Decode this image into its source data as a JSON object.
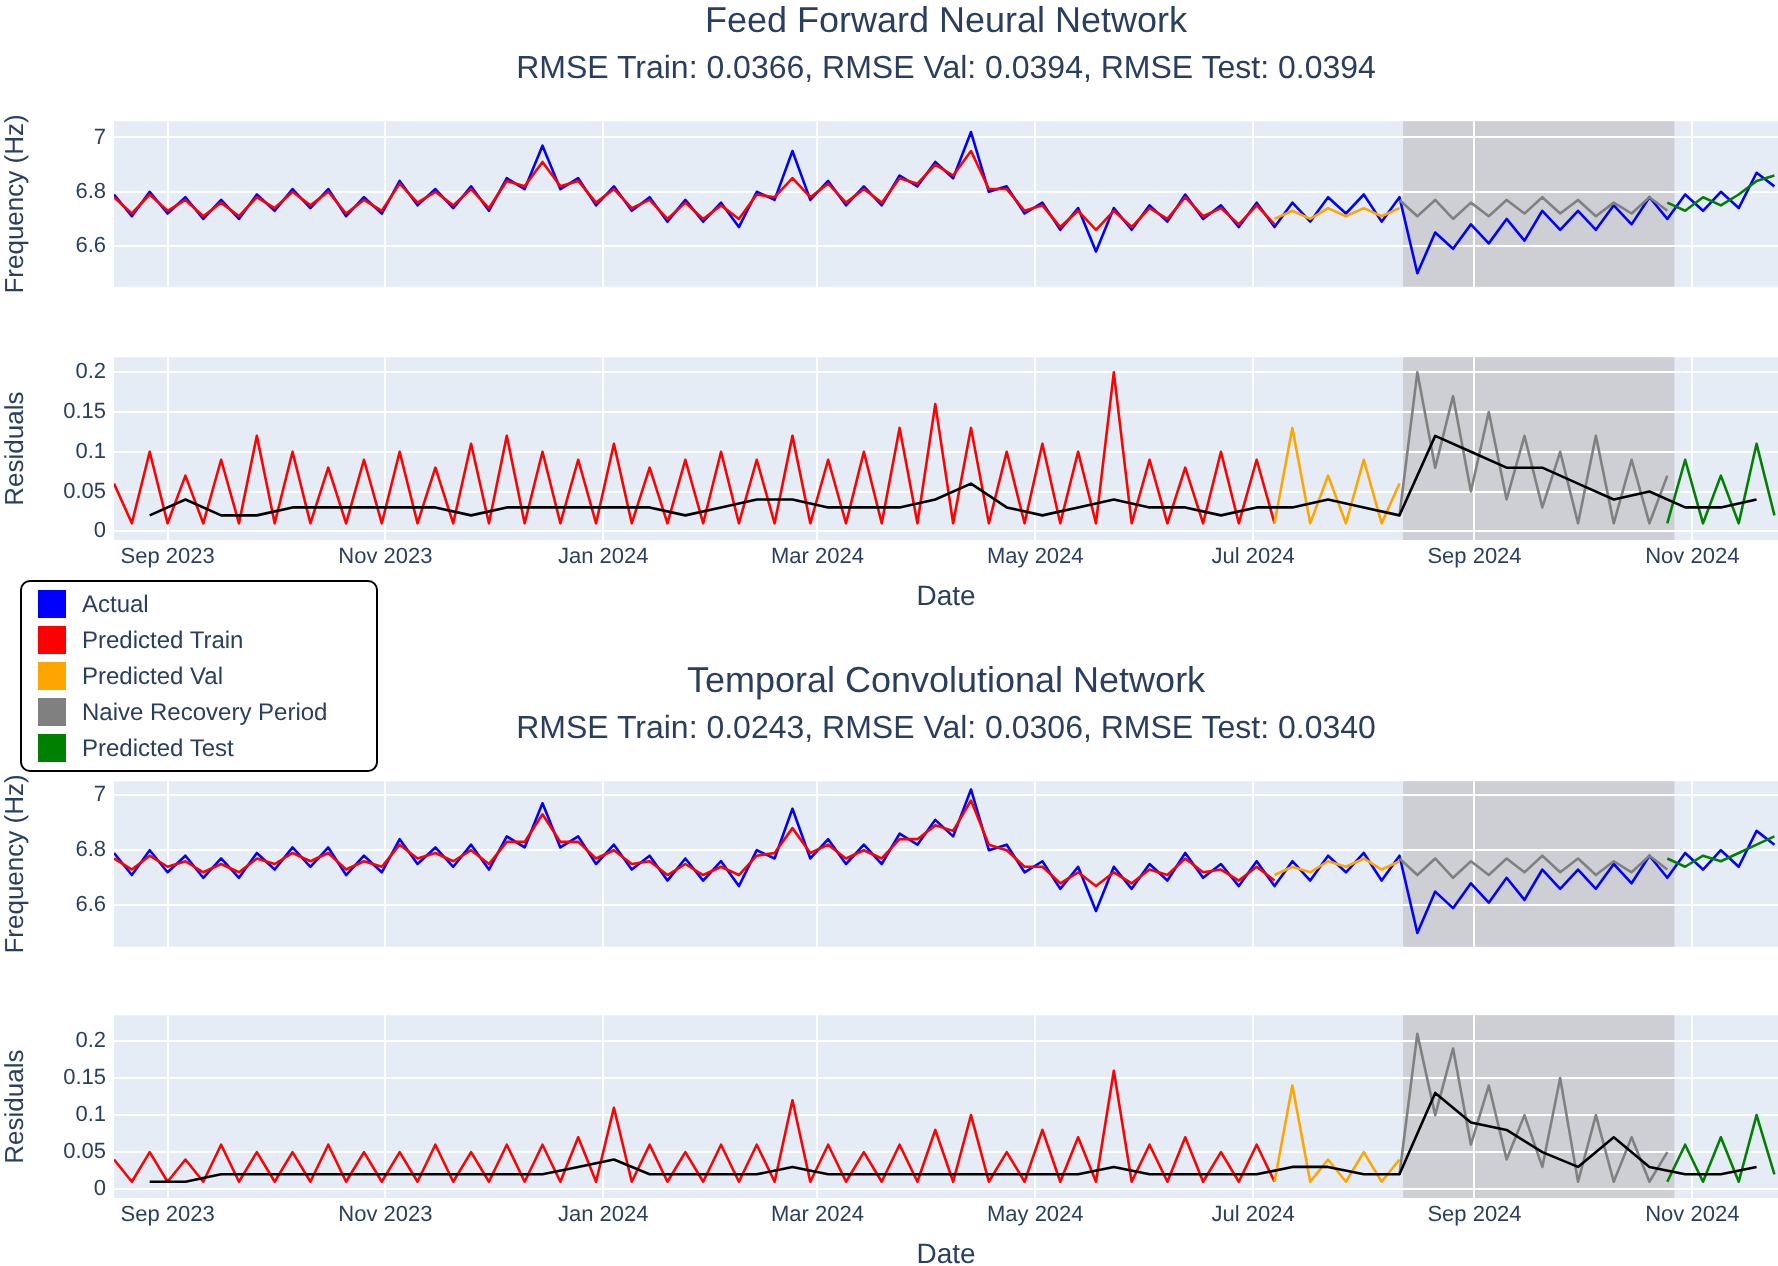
{
  "chart_data": [
    {
      "type": "line",
      "title": "Feed Forward Neural Network",
      "subtitle": "RMSE Train: 0.0366, RMSE Val: 0.0394, RMSE Test: 0.0394",
      "ylabel": "Frequency (Hz)",
      "legend": "left",
      "grid": true,
      "marker": "none",
      "tick_labels": "y",
      "xlim": [
        "2023-08-17",
        "2024-11-25"
      ],
      "xticks": [
        {
          "value": "2023-09-01",
          "label": null
        },
        {
          "value": "2023-11-01",
          "label": null
        },
        {
          "value": "2024-01-01",
          "label": null
        },
        {
          "value": "2024-03-01",
          "label": null
        },
        {
          "value": "2024-05-01",
          "label": null
        },
        {
          "value": "2024-07-01",
          "label": null
        },
        {
          "value": "2024-09-01",
          "label": null
        },
        {
          "value": "2024-11-01",
          "label": null
        }
      ],
      "ylim": [
        6.45,
        7.06
      ],
      "yticks": [
        6.6,
        6.8,
        7
      ],
      "bands": [
        {
          "axis": "x",
          "from": "2024-08-12",
          "to": "2024-10-27",
          "color": "#cdcfd4"
        }
      ],
      "series": [
        {
          "name": "Actual",
          "color": "#0000ff",
          "x": [
            "2023-08-17",
            "2023-08-22",
            "2023-08-27",
            "2023-09-01",
            "2023-09-06",
            "2023-09-11",
            "2023-09-16",
            "2023-09-21",
            "2023-09-26",
            "2023-10-01",
            "2023-10-06",
            "2023-10-11",
            "2023-10-16",
            "2023-10-21",
            "2023-10-26",
            "2023-10-31",
            "2023-11-05",
            "2023-11-10",
            "2023-11-15",
            "2023-11-20",
            "2023-11-25",
            "2023-11-30",
            "2023-12-05",
            "2023-12-10",
            "2023-12-15",
            "2023-12-20",
            "2023-12-25",
            "2023-12-30",
            "2024-01-04",
            "2024-01-09",
            "2024-01-14",
            "2024-01-19",
            "2024-01-24",
            "2024-01-29",
            "2024-02-03",
            "2024-02-08",
            "2024-02-13",
            "2024-02-18",
            "2024-02-23",
            "2024-02-28",
            "2024-03-04",
            "2024-03-09",
            "2024-03-14",
            "2024-03-19",
            "2024-03-24",
            "2024-03-29",
            "2024-04-03",
            "2024-04-08",
            "2024-04-13",
            "2024-04-18",
            "2024-04-23",
            "2024-04-28",
            "2024-05-03",
            "2024-05-08",
            "2024-05-13",
            "2024-05-18",
            "2024-05-23",
            "2024-05-28",
            "2024-06-02",
            "2024-06-07",
            "2024-06-12",
            "2024-06-17",
            "2024-06-22",
            "2024-06-27",
            "2024-07-02",
            "2024-07-07",
            "2024-07-12",
            "2024-07-17",
            "2024-07-22",
            "2024-07-27",
            "2024-08-01",
            "2024-08-06",
            "2024-08-11",
            "2024-08-16",
            "2024-08-21",
            "2024-08-26",
            "2024-08-31",
            "2024-09-05",
            "2024-09-10",
            "2024-09-15",
            "2024-09-20",
            "2024-09-25",
            "2024-09-30",
            "2024-10-05",
            "2024-10-10",
            "2024-10-15",
            "2024-10-20",
            "2024-10-25",
            "2024-10-30",
            "2024-11-04",
            "2024-11-09",
            "2024-11-14",
            "2024-11-19",
            "2024-11-24"
          ],
          "values": [
            6.79,
            6.71,
            6.8,
            6.72,
            6.78,
            6.7,
            6.77,
            6.7,
            6.79,
            6.73,
            6.81,
            6.74,
            6.81,
            6.71,
            6.78,
            6.72,
            6.84,
            6.75,
            6.81,
            6.74,
            6.82,
            6.73,
            6.85,
            6.81,
            6.97,
            6.81,
            6.85,
            6.75,
            6.82,
            6.73,
            6.78,
            6.69,
            6.77,
            6.69,
            6.76,
            6.67,
            6.8,
            6.77,
            6.95,
            6.77,
            6.84,
            6.75,
            6.82,
            6.75,
            6.86,
            6.82,
            6.91,
            6.85,
            7.02,
            6.8,
            6.82,
            6.72,
            6.76,
            6.66,
            6.74,
            6.58,
            6.74,
            6.66,
            6.75,
            6.69,
            6.79,
            6.7,
            6.75,
            6.67,
            6.76,
            6.67,
            6.76,
            6.69,
            6.78,
            6.72,
            6.79,
            6.69,
            6.78,
            6.5,
            6.65,
            6.59,
            6.68,
            6.61,
            6.7,
            6.62,
            6.73,
            6.66,
            6.73,
            6.66,
            6.75,
            6.68,
            6.78,
            6.7,
            6.79,
            6.73,
            6.8,
            6.74,
            6.87,
            6.82
          ]
        },
        {
          "name": "Predicted Train",
          "color": "#ff0000",
          "x": [
            "2023-08-17",
            "2023-08-22",
            "2023-08-27",
            "2023-09-01",
            "2023-09-06",
            "2023-09-11",
            "2023-09-16",
            "2023-09-21",
            "2023-09-26",
            "2023-10-01",
            "2023-10-06",
            "2023-10-11",
            "2023-10-16",
            "2023-10-21",
            "2023-10-26",
            "2023-10-31",
            "2023-11-05",
            "2023-11-10",
            "2023-11-15",
            "2023-11-20",
            "2023-11-25",
            "2023-11-30",
            "2023-12-05",
            "2023-12-10",
            "2023-12-15",
            "2023-12-20",
            "2023-12-25",
            "2023-12-30",
            "2024-01-04",
            "2024-01-09",
            "2024-01-14",
            "2024-01-19",
            "2024-01-24",
            "2024-01-29",
            "2024-02-03",
            "2024-02-08",
            "2024-02-13",
            "2024-02-18",
            "2024-02-23",
            "2024-02-28",
            "2024-03-04",
            "2024-03-09",
            "2024-03-14",
            "2024-03-19",
            "2024-03-24",
            "2024-03-29",
            "2024-04-03",
            "2024-04-08",
            "2024-04-13",
            "2024-04-18",
            "2024-04-23",
            "2024-04-28",
            "2024-05-03",
            "2024-05-08",
            "2024-05-13",
            "2024-05-18",
            "2024-05-23",
            "2024-05-28",
            "2024-06-02",
            "2024-06-07",
            "2024-06-12",
            "2024-06-17",
            "2024-06-22",
            "2024-06-27",
            "2024-07-02",
            "2024-07-07"
          ],
          "values": [
            6.78,
            6.72,
            6.79,
            6.73,
            6.77,
            6.71,
            6.76,
            6.71,
            6.78,
            6.74,
            6.8,
            6.75,
            6.8,
            6.72,
            6.77,
            6.73,
            6.83,
            6.76,
            6.8,
            6.75,
            6.81,
            6.74,
            6.84,
            6.82,
            6.91,
            6.82,
            6.84,
            6.76,
            6.81,
            6.74,
            6.77,
            6.7,
            6.76,
            6.7,
            6.75,
            6.7,
            6.79,
            6.78,
            6.85,
            6.78,
            6.83,
            6.76,
            6.81,
            6.76,
            6.85,
            6.83,
            6.9,
            6.86,
            6.95,
            6.81,
            6.81,
            6.73,
            6.75,
            6.67,
            6.73,
            6.66,
            6.73,
            6.67,
            6.74,
            6.7,
            6.78,
            6.71,
            6.74,
            6.68,
            6.75,
            6.68
          ]
        },
        {
          "name": "Predicted Val",
          "color": "#ffa500",
          "x": [
            "2024-07-07",
            "2024-07-12",
            "2024-07-17",
            "2024-07-22",
            "2024-07-27",
            "2024-08-01",
            "2024-08-06",
            "2024-08-11"
          ],
          "values": [
            6.7,
            6.73,
            6.7,
            6.74,
            6.71,
            6.74,
            6.71,
            6.74
          ]
        },
        {
          "name": "Naive Recovery Period",
          "color": "#808080",
          "x": [
            "2024-08-11",
            "2024-08-16",
            "2024-08-21",
            "2024-08-26",
            "2024-08-31",
            "2024-09-05",
            "2024-09-10",
            "2024-09-15",
            "2024-09-20",
            "2024-09-25",
            "2024-09-30",
            "2024-10-05",
            "2024-10-10",
            "2024-10-15",
            "2024-10-20",
            "2024-10-25"
          ],
          "values": [
            6.77,
            6.71,
            6.77,
            6.7,
            6.76,
            6.71,
            6.77,
            6.72,
            6.78,
            6.72,
            6.77,
            6.71,
            6.76,
            6.72,
            6.78,
            6.73
          ]
        },
        {
          "name": "Predicted Test",
          "color": "#008000",
          "x": [
            "2024-10-25",
            "2024-10-30",
            "2024-11-04",
            "2024-11-09",
            "2024-11-14",
            "2024-11-19",
            "2024-11-24"
          ],
          "values": [
            6.76,
            6.73,
            6.78,
            6.75,
            6.79,
            6.84,
            6.86
          ]
        }
      ]
    },
    {
      "type": "line",
      "xlabel": "Date",
      "ylabel": "Residuals",
      "grid": true,
      "marker": "none",
      "xlim": [
        "2023-08-17",
        "2024-11-25"
      ],
      "xticks": [
        {
          "value": "2023-09-01",
          "label": "Sep 2023"
        },
        {
          "value": "2023-11-01",
          "label": "Nov 2023"
        },
        {
          "value": "2024-01-01",
          "label": "Jan 2024"
        },
        {
          "value": "2024-03-01",
          "label": "Mar 2024"
        },
        {
          "value": "2024-05-01",
          "label": "May 2024"
        },
        {
          "value": "2024-07-01",
          "label": "Jul 2024"
        },
        {
          "value": "2024-09-01",
          "label": "Sep 2024"
        },
        {
          "value": "2024-11-01",
          "label": "Nov 2024"
        }
      ],
      "ylim": [
        -0.011,
        0.219
      ],
      "yticks": [
        0,
        0.05,
        0.1,
        0.15,
        0.2
      ],
      "bands": [
        {
          "axis": "x",
          "from": "2024-08-12",
          "to": "2024-10-27",
          "color": "#cdcfd4"
        }
      ],
      "series": [
        {
          "color": "#ff0000",
          "x": [
            "2023-08-17",
            "2023-08-22",
            "2023-08-27",
            "2023-09-01",
            "2023-09-06",
            "2023-09-11",
            "2023-09-16",
            "2023-09-21",
            "2023-09-26",
            "2023-10-01",
            "2023-10-06",
            "2023-10-11",
            "2023-10-16",
            "2023-10-21",
            "2023-10-26",
            "2023-10-31",
            "2023-11-05",
            "2023-11-10",
            "2023-11-15",
            "2023-11-20",
            "2023-11-25",
            "2023-11-30",
            "2023-12-05",
            "2023-12-10",
            "2023-12-15",
            "2023-12-20",
            "2023-12-25",
            "2023-12-30",
            "2024-01-04",
            "2024-01-09",
            "2024-01-14",
            "2024-01-19",
            "2024-01-24",
            "2024-01-29",
            "2024-02-03",
            "2024-02-08",
            "2024-02-13",
            "2024-02-18",
            "2024-02-23",
            "2024-02-28",
            "2024-03-04",
            "2024-03-09",
            "2024-03-14",
            "2024-03-19",
            "2024-03-24",
            "2024-03-29",
            "2024-04-03",
            "2024-04-08",
            "2024-04-13",
            "2024-04-18",
            "2024-04-23",
            "2024-04-28",
            "2024-05-03",
            "2024-05-08",
            "2024-05-13",
            "2024-05-18",
            "2024-05-23",
            "2024-05-28",
            "2024-06-02",
            "2024-06-07",
            "2024-06-12",
            "2024-06-17",
            "2024-06-22",
            "2024-06-27",
            "2024-07-02",
            "2024-07-07"
          ],
          "values": [
            0.06,
            0.01,
            0.1,
            0.01,
            0.07,
            0.01,
            0.09,
            0.01,
            0.12,
            0.01,
            0.1,
            0.01,
            0.08,
            0.01,
            0.09,
            0.01,
            0.1,
            0.01,
            0.08,
            0.01,
            0.11,
            0.01,
            0.12,
            0.01,
            0.1,
            0.01,
            0.09,
            0.01,
            0.11,
            0.01,
            0.08,
            0.01,
            0.09,
            0.01,
            0.1,
            0.01,
            0.09,
            0.01,
            0.12,
            0.01,
            0.09,
            0.01,
            0.1,
            0.01,
            0.13,
            0.01,
            0.16,
            0.01,
            0.13,
            0.01,
            0.1,
            0.01,
            0.11,
            0.01,
            0.1,
            0.01,
            0.2,
            0.01,
            0.09,
            0.01,
            0.08,
            0.01,
            0.1,
            0.01,
            0.09,
            0.01
          ]
        },
        {
          "color": "#ffa500",
          "x": [
            "2024-07-07",
            "2024-07-12",
            "2024-07-17",
            "2024-07-22",
            "2024-07-27",
            "2024-08-01",
            "2024-08-06",
            "2024-08-11"
          ],
          "values": [
            0.01,
            0.13,
            0.01,
            0.07,
            0.01,
            0.09,
            0.01,
            0.06
          ]
        },
        {
          "color": "#808080",
          "x": [
            "2024-08-11",
            "2024-08-16",
            "2024-08-21",
            "2024-08-26",
            "2024-08-31",
            "2024-09-05",
            "2024-09-10",
            "2024-09-15",
            "2024-09-20",
            "2024-09-25",
            "2024-09-30",
            "2024-10-05",
            "2024-10-10",
            "2024-10-15",
            "2024-10-20",
            "2024-10-25"
          ],
          "values": [
            0.02,
            0.2,
            0.08,
            0.17,
            0.05,
            0.15,
            0.04,
            0.12,
            0.03,
            0.1,
            0.01,
            0.12,
            0.01,
            0.09,
            0.01,
            0.07
          ]
        },
        {
          "color": "#008000",
          "x": [
            "2024-10-25",
            "2024-10-30",
            "2024-11-04",
            "2024-11-09",
            "2024-11-14",
            "2024-11-19",
            "2024-11-24"
          ],
          "values": [
            0.01,
            0.09,
            0.01,
            0.07,
            0.01,
            0.11,
            0.02
          ]
        },
        {
          "color": "#000000",
          "x": [
            "2023-08-27",
            "2023-09-06",
            "2023-09-16",
            "2023-09-26",
            "2023-10-06",
            "2023-10-16",
            "2023-10-26",
            "2023-11-05",
            "2023-11-15",
            "2023-11-25",
            "2023-12-05",
            "2023-12-15",
            "2023-12-25",
            "2024-01-04",
            "2024-01-14",
            "2024-01-24",
            "2024-02-03",
            "2024-02-13",
            "2024-02-23",
            "2024-03-04",
            "2024-03-14",
            "2024-03-24",
            "2024-04-03",
            "2024-04-13",
            "2024-04-23",
            "2024-05-03",
            "2024-05-13",
            "2024-05-23",
            "2024-06-02",
            "2024-06-12",
            "2024-06-22",
            "2024-07-02",
            "2024-07-12",
            "2024-07-22",
            "2024-08-01",
            "2024-08-11",
            "2024-08-21",
            "2024-08-31",
            "2024-09-10",
            "2024-09-20",
            "2024-09-30",
            "2024-10-10",
            "2024-10-20",
            "2024-10-30",
            "2024-11-09",
            "2024-11-19"
          ],
          "values": [
            0.02,
            0.04,
            0.02,
            0.02,
            0.03,
            0.03,
            0.03,
            0.03,
            0.03,
            0.02,
            0.03,
            0.03,
            0.03,
            0.03,
            0.03,
            0.02,
            0.03,
            0.04,
            0.04,
            0.03,
            0.03,
            0.03,
            0.04,
            0.06,
            0.03,
            0.02,
            0.03,
            0.04,
            0.03,
            0.03,
            0.02,
            0.03,
            0.03,
            0.04,
            0.03,
            0.02,
            0.12,
            0.1,
            0.08,
            0.08,
            0.06,
            0.04,
            0.05,
            0.03,
            0.03,
            0.04
          ]
        }
      ]
    },
    {
      "type": "line",
      "title": "Temporal Convolutional Network",
      "subtitle": "RMSE Train: 0.0243, RMSE Val: 0.0306, RMSE Test: 0.0340",
      "ylabel": "Frequency (Hz)",
      "grid": true,
      "marker": "none",
      "tick_labels": "y",
      "xlim": [
        "2023-08-17",
        "2024-11-25"
      ],
      "xticks": [
        {
          "value": "2023-09-01",
          "label": null
        },
        {
          "value": "2023-11-01",
          "label": null
        },
        {
          "value": "2024-01-01",
          "label": null
        },
        {
          "value": "2024-03-01",
          "label": null
        },
        {
          "value": "2024-05-01",
          "label": null
        },
        {
          "value": "2024-07-01",
          "label": null
        },
        {
          "value": "2024-09-01",
          "label": null
        },
        {
          "value": "2024-11-01",
          "label": null
        }
      ],
      "ylim": [
        6.45,
        7.05
      ],
      "yticks": [
        6.6,
        6.8,
        7
      ],
      "bands": [
        {
          "axis": "x",
          "from": "2024-08-12",
          "to": "2024-10-27",
          "color": "#cdcfd4"
        }
      ],
      "series": [
        {
          "color": "#0000ff",
          "x": [
            "2023-08-17",
            "2023-08-22",
            "2023-08-27",
            "2023-09-01",
            "2023-09-06",
            "2023-09-11",
            "2023-09-16",
            "2023-09-21",
            "2023-09-26",
            "2023-10-01",
            "2023-10-06",
            "2023-10-11",
            "2023-10-16",
            "2023-10-21",
            "2023-10-26",
            "2023-10-31",
            "2023-11-05",
            "2023-11-10",
            "2023-11-15",
            "2023-11-20",
            "2023-11-25",
            "2023-11-30",
            "2023-12-05",
            "2023-12-10",
            "2023-12-15",
            "2023-12-20",
            "2023-12-25",
            "2023-12-30",
            "2024-01-04",
            "2024-01-09",
            "2024-01-14",
            "2024-01-19",
            "2024-01-24",
            "2024-01-29",
            "2024-02-03",
            "2024-02-08",
            "2024-02-13",
            "2024-02-18",
            "2024-02-23",
            "2024-02-28",
            "2024-03-04",
            "2024-03-09",
            "2024-03-14",
            "2024-03-19",
            "2024-03-24",
            "2024-03-29",
            "2024-04-03",
            "2024-04-08",
            "2024-04-13",
            "2024-04-18",
            "2024-04-23",
            "2024-04-28",
            "2024-05-03",
            "2024-05-08",
            "2024-05-13",
            "2024-05-18",
            "2024-05-23",
            "2024-05-28",
            "2024-06-02",
            "2024-06-07",
            "2024-06-12",
            "2024-06-17",
            "2024-06-22",
            "2024-06-27",
            "2024-07-02",
            "2024-07-07",
            "2024-07-12",
            "2024-07-17",
            "2024-07-22",
            "2024-07-27",
            "2024-08-01",
            "2024-08-06",
            "2024-08-11",
            "2024-08-16",
            "2024-08-21",
            "2024-08-26",
            "2024-08-31",
            "2024-09-05",
            "2024-09-10",
            "2024-09-15",
            "2024-09-20",
            "2024-09-25",
            "2024-09-30",
            "2024-10-05",
            "2024-10-10",
            "2024-10-15",
            "2024-10-20",
            "2024-10-25",
            "2024-10-30",
            "2024-11-04",
            "2024-11-09",
            "2024-11-14",
            "2024-11-19",
            "2024-11-24"
          ],
          "values": [
            6.79,
            6.71,
            6.8,
            6.72,
            6.78,
            6.7,
            6.77,
            6.7,
            6.79,
            6.73,
            6.81,
            6.74,
            6.81,
            6.71,
            6.78,
            6.72,
            6.84,
            6.75,
            6.81,
            6.74,
            6.82,
            6.73,
            6.85,
            6.81,
            6.97,
            6.81,
            6.85,
            6.75,
            6.82,
            6.73,
            6.78,
            6.69,
            6.77,
            6.69,
            6.76,
            6.67,
            6.8,
            6.77,
            6.95,
            6.77,
            6.84,
            6.75,
            6.82,
            6.75,
            6.86,
            6.82,
            6.91,
            6.85,
            7.02,
            6.8,
            6.82,
            6.72,
            6.76,
            6.66,
            6.74,
            6.58,
            6.74,
            6.66,
            6.75,
            6.69,
            6.79,
            6.7,
            6.75,
            6.67,
            6.76,
            6.67,
            6.76,
            6.69,
            6.78,
            6.72,
            6.79,
            6.69,
            6.78,
            6.5,
            6.65,
            6.59,
            6.68,
            6.61,
            6.7,
            6.62,
            6.73,
            6.66,
            6.73,
            6.66,
            6.75,
            6.68,
            6.78,
            6.7,
            6.79,
            6.73,
            6.8,
            6.74,
            6.87,
            6.82
          ]
        },
        {
          "color": "#ff0000",
          "x": [
            "2023-08-17",
            "2023-08-22",
            "2023-08-27",
            "2023-09-01",
            "2023-09-06",
            "2023-09-11",
            "2023-09-16",
            "2023-09-21",
            "2023-09-26",
            "2023-10-01",
            "2023-10-06",
            "2023-10-11",
            "2023-10-16",
            "2023-10-21",
            "2023-10-26",
            "2023-10-31",
            "2023-11-05",
            "2023-11-10",
            "2023-11-15",
            "2023-11-20",
            "2023-11-25",
            "2023-11-30",
            "2023-12-05",
            "2023-12-10",
            "2023-12-15",
            "2023-12-20",
            "2023-12-25",
            "2023-12-30",
            "2024-01-04",
            "2024-01-09",
            "2024-01-14",
            "2024-01-19",
            "2024-01-24",
            "2024-01-29",
            "2024-02-03",
            "2024-02-08",
            "2024-02-13",
            "2024-02-18",
            "2024-02-23",
            "2024-02-28",
            "2024-03-04",
            "2024-03-09",
            "2024-03-14",
            "2024-03-19",
            "2024-03-24",
            "2024-03-29",
            "2024-04-03",
            "2024-04-08",
            "2024-04-13",
            "2024-04-18",
            "2024-04-23",
            "2024-04-28",
            "2024-05-03",
            "2024-05-08",
            "2024-05-13",
            "2024-05-18",
            "2024-05-23",
            "2024-05-28",
            "2024-06-02",
            "2024-06-07",
            "2024-06-12",
            "2024-06-17",
            "2024-06-22",
            "2024-06-27",
            "2024-07-02",
            "2024-07-07"
          ],
          "values": [
            6.77,
            6.73,
            6.78,
            6.74,
            6.76,
            6.72,
            6.75,
            6.72,
            6.77,
            6.75,
            6.79,
            6.76,
            6.79,
            6.73,
            6.76,
            6.74,
            6.82,
            6.77,
            6.79,
            6.76,
            6.8,
            6.75,
            6.83,
            6.83,
            6.93,
            6.83,
            6.83,
            6.77,
            6.8,
            6.75,
            6.76,
            6.71,
            6.75,
            6.71,
            6.74,
            6.71,
            6.78,
            6.79,
            6.88,
            6.79,
            6.82,
            6.77,
            6.8,
            6.77,
            6.84,
            6.84,
            6.89,
            6.87,
            6.98,
            6.82,
            6.8,
            6.74,
            6.74,
            6.68,
            6.72,
            6.67,
            6.72,
            6.68,
            6.73,
            6.71,
            6.77,
            6.72,
            6.73,
            6.69,
            6.74,
            6.69
          ]
        },
        {
          "color": "#ffa500",
          "x": [
            "2024-07-07",
            "2024-07-12",
            "2024-07-17",
            "2024-07-22",
            "2024-07-27",
            "2024-08-01",
            "2024-08-06",
            "2024-08-11"
          ],
          "values": [
            6.71,
            6.74,
            6.72,
            6.76,
            6.74,
            6.77,
            6.73,
            6.76
          ]
        },
        {
          "color": "#808080",
          "x": [
            "2024-08-11",
            "2024-08-16",
            "2024-08-21",
            "2024-08-26",
            "2024-08-31",
            "2024-09-05",
            "2024-09-10",
            "2024-09-15",
            "2024-09-20",
            "2024-09-25",
            "2024-09-30",
            "2024-10-05",
            "2024-10-10",
            "2024-10-15",
            "2024-10-20",
            "2024-10-25"
          ],
          "values": [
            6.77,
            6.71,
            6.77,
            6.7,
            6.76,
            6.71,
            6.77,
            6.72,
            6.78,
            6.72,
            6.77,
            6.71,
            6.76,
            6.72,
            6.78,
            6.73
          ]
        },
        {
          "color": "#008000",
          "x": [
            "2024-10-25",
            "2024-10-30",
            "2024-11-04",
            "2024-11-09",
            "2024-11-14",
            "2024-11-19",
            "2024-11-24"
          ],
          "values": [
            6.77,
            6.74,
            6.78,
            6.76,
            6.79,
            6.82,
            6.85
          ]
        }
      ]
    },
    {
      "type": "line",
      "xlabel": "Date",
      "ylabel": "Residuals",
      "grid": true,
      "marker": "none",
      "xlim": [
        "2023-08-17",
        "2024-11-25"
      ],
      "xticks": [
        {
          "value": "2023-09-01",
          "label": "Sep 2023"
        },
        {
          "value": "2023-11-01",
          "label": "Nov 2023"
        },
        {
          "value": "2024-01-01",
          "label": "Jan 2024"
        },
        {
          "value": "2024-03-01",
          "label": "Mar 2024"
        },
        {
          "value": "2024-05-01",
          "label": "May 2024"
        },
        {
          "value": "2024-07-01",
          "label": "Jul 2024"
        },
        {
          "value": "2024-09-01",
          "label": "Sep 2024"
        },
        {
          "value": "2024-11-01",
          "label": "Nov 2024"
        }
      ],
      "ylim": [
        -0.012,
        0.235
      ],
      "yticks": [
        0,
        0.05,
        0.1,
        0.15,
        0.2
      ],
      "bands": [
        {
          "axis": "x",
          "from": "2024-08-12",
          "to": "2024-10-27",
          "color": "#cdcfd4"
        }
      ],
      "series": [
        {
          "color": "#ff0000",
          "x": [
            "2023-08-17",
            "2023-08-22",
            "2023-08-27",
            "2023-09-01",
            "2023-09-06",
            "2023-09-11",
            "2023-09-16",
            "2023-09-21",
            "2023-09-26",
            "2023-10-01",
            "2023-10-06",
            "2023-10-11",
            "2023-10-16",
            "2023-10-21",
            "2023-10-26",
            "2023-10-31",
            "2023-11-05",
            "2023-11-10",
            "2023-11-15",
            "2023-11-20",
            "2023-11-25",
            "2023-11-30",
            "2023-12-05",
            "2023-12-10",
            "2023-12-15",
            "2023-12-20",
            "2023-12-25",
            "2023-12-30",
            "2024-01-04",
            "2024-01-09",
            "2024-01-14",
            "2024-01-19",
            "2024-01-24",
            "2024-01-29",
            "2024-02-03",
            "2024-02-08",
            "2024-02-13",
            "2024-02-18",
            "2024-02-23",
            "2024-02-28",
            "2024-03-04",
            "2024-03-09",
            "2024-03-14",
            "2024-03-19",
            "2024-03-24",
            "2024-03-29",
            "2024-04-03",
            "2024-04-08",
            "2024-04-13",
            "2024-04-18",
            "2024-04-23",
            "2024-04-28",
            "2024-05-03",
            "2024-05-08",
            "2024-05-13",
            "2024-05-18",
            "2024-05-23",
            "2024-05-28",
            "2024-06-02",
            "2024-06-07",
            "2024-06-12",
            "2024-06-17",
            "2024-06-22",
            "2024-06-27",
            "2024-07-02",
            "2024-07-07"
          ],
          "values": [
            0.04,
            0.01,
            0.05,
            0.01,
            0.04,
            0.01,
            0.06,
            0.01,
            0.05,
            0.01,
            0.05,
            0.01,
            0.06,
            0.01,
            0.05,
            0.01,
            0.05,
            0.01,
            0.06,
            0.01,
            0.05,
            0.01,
            0.06,
            0.01,
            0.06,
            0.01,
            0.07,
            0.01,
            0.11,
            0.01,
            0.06,
            0.01,
            0.05,
            0.01,
            0.06,
            0.01,
            0.06,
            0.01,
            0.12,
            0.01,
            0.06,
            0.01,
            0.05,
            0.01,
            0.06,
            0.01,
            0.08,
            0.01,
            0.1,
            0.01,
            0.05,
            0.01,
            0.08,
            0.01,
            0.07,
            0.01,
            0.16,
            0.01,
            0.06,
            0.01,
            0.07,
            0.01,
            0.05,
            0.01,
            0.06,
            0.01
          ]
        },
        {
          "color": "#ffa500",
          "x": [
            "2024-07-07",
            "2024-07-12",
            "2024-07-17",
            "2024-07-22",
            "2024-07-27",
            "2024-08-01",
            "2024-08-06",
            "2024-08-11"
          ],
          "values": [
            0.01,
            0.14,
            0.01,
            0.04,
            0.01,
            0.05,
            0.01,
            0.04
          ]
        },
        {
          "color": "#808080",
          "x": [
            "2024-08-11",
            "2024-08-16",
            "2024-08-21",
            "2024-08-26",
            "2024-08-31",
            "2024-09-05",
            "2024-09-10",
            "2024-09-15",
            "2024-09-20",
            "2024-09-25",
            "2024-09-30",
            "2024-10-05",
            "2024-10-10",
            "2024-10-15",
            "2024-10-20",
            "2024-10-25"
          ],
          "values": [
            0.02,
            0.21,
            0.1,
            0.19,
            0.06,
            0.14,
            0.04,
            0.1,
            0.03,
            0.15,
            0.01,
            0.1,
            0.01,
            0.07,
            0.01,
            0.05
          ]
        },
        {
          "color": "#008000",
          "x": [
            "2024-10-25",
            "2024-10-30",
            "2024-11-04",
            "2024-11-09",
            "2024-11-14",
            "2024-11-19",
            "2024-11-24"
          ],
          "values": [
            0.01,
            0.06,
            0.01,
            0.07,
            0.01,
            0.1,
            0.02
          ]
        },
        {
          "color": "#000000",
          "x": [
            "2023-08-27",
            "2023-09-06",
            "2023-09-16",
            "2023-09-26",
            "2023-10-06",
            "2023-10-16",
            "2023-10-26",
            "2023-11-05",
            "2023-11-15",
            "2023-11-25",
            "2023-12-05",
            "2023-12-15",
            "2023-12-25",
            "2024-01-04",
            "2024-01-14",
            "2024-01-24",
            "2024-02-03",
            "2024-02-13",
            "2024-02-23",
            "2024-03-04",
            "2024-03-14",
            "2024-03-24",
            "2024-04-03",
            "2024-04-13",
            "2024-04-23",
            "2024-05-03",
            "2024-05-13",
            "2024-05-23",
            "2024-06-02",
            "2024-06-12",
            "2024-06-22",
            "2024-07-02",
            "2024-07-12",
            "2024-07-22",
            "2024-08-01",
            "2024-08-11",
            "2024-08-21",
            "2024-08-31",
            "2024-09-10",
            "2024-09-20",
            "2024-09-30",
            "2024-10-10",
            "2024-10-20",
            "2024-10-30",
            "2024-11-09",
            "2024-11-19"
          ],
          "values": [
            0.01,
            0.01,
            0.02,
            0.02,
            0.02,
            0.02,
            0.02,
            0.02,
            0.02,
            0.02,
            0.02,
            0.02,
            0.03,
            0.04,
            0.02,
            0.02,
            0.02,
            0.02,
            0.03,
            0.02,
            0.02,
            0.02,
            0.02,
            0.02,
            0.02,
            0.02,
            0.02,
            0.03,
            0.02,
            0.02,
            0.02,
            0.02,
            0.03,
            0.03,
            0.02,
            0.02,
            0.13,
            0.09,
            0.08,
            0.05,
            0.03,
            0.07,
            0.03,
            0.02,
            0.02,
            0.03
          ]
        }
      ]
    }
  ]
}
